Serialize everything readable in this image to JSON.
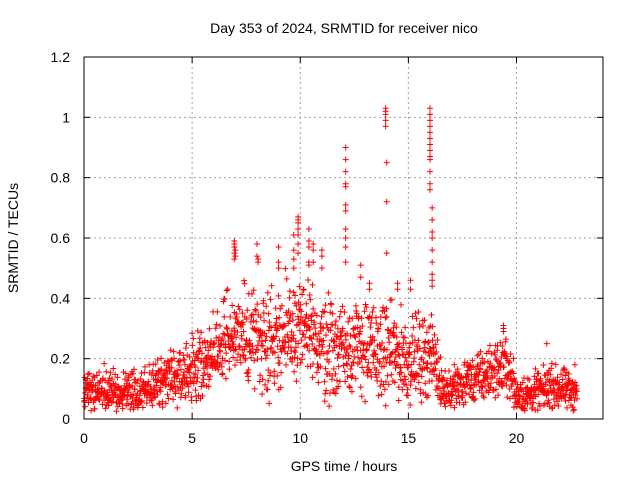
{
  "chart_data": {
    "type": "scatter",
    "title": "Day 353 of 2024, SRMTID for receiver nico",
    "xlabel": "GPS time / hours",
    "ylabel": "SRMTID / TECUs",
    "xlim": [
      0,
      24
    ],
    "ylim": [
      0,
      1.2
    ],
    "xticks": [
      0,
      5,
      10,
      15,
      20
    ],
    "xtick_labels": [
      "0",
      "5",
      "10",
      "15",
      "20"
    ],
    "yticks": [
      0,
      0.2,
      0.4,
      0.6,
      0.8,
      1,
      1.2
    ],
    "ytick_labels": [
      "0",
      "0.2",
      "0.4",
      "0.6",
      "0.8",
      "1",
      "1.2"
    ],
    "grid": true,
    "marker": "+",
    "color": "#ff0000",
    "trend": [
      [
        0.0,
        0.09
      ],
      [
        0.5,
        0.09
      ],
      [
        1.0,
        0.1
      ],
      [
        1.5,
        0.09
      ],
      [
        2.0,
        0.09
      ],
      [
        2.5,
        0.09
      ],
      [
        3.0,
        0.1
      ],
      [
        3.5,
        0.12
      ],
      [
        4.0,
        0.14
      ],
      [
        4.5,
        0.16
      ],
      [
        5.0,
        0.16
      ],
      [
        5.5,
        0.19
      ],
      [
        6.0,
        0.22
      ],
      [
        6.5,
        0.25
      ],
      [
        7.0,
        0.27
      ],
      [
        7.5,
        0.27
      ],
      [
        8.0,
        0.27
      ],
      [
        8.5,
        0.26
      ],
      [
        9.0,
        0.27
      ],
      [
        9.5,
        0.28
      ],
      [
        10.0,
        0.3
      ],
      [
        10.5,
        0.27
      ],
      [
        11.0,
        0.25
      ],
      [
        11.5,
        0.24
      ],
      [
        12.0,
        0.24
      ],
      [
        12.5,
        0.25
      ],
      [
        13.0,
        0.24
      ],
      [
        13.5,
        0.22
      ],
      [
        14.0,
        0.22
      ],
      [
        14.5,
        0.21
      ],
      [
        15.0,
        0.2
      ],
      [
        15.5,
        0.2
      ],
      [
        16.0,
        0.22
      ],
      [
        16.3,
        0.18
      ],
      [
        16.6,
        0.1
      ],
      [
        17.0,
        0.1
      ],
      [
        17.5,
        0.12
      ],
      [
        18.0,
        0.13
      ],
      [
        18.5,
        0.14
      ],
      [
        19.0,
        0.16
      ],
      [
        19.5,
        0.18
      ],
      [
        19.8,
        0.14
      ],
      [
        20.0,
        0.08
      ],
      [
        20.5,
        0.08
      ],
      [
        21.0,
        0.09
      ],
      [
        21.5,
        0.11
      ],
      [
        22.0,
        0.1
      ],
      [
        22.5,
        0.09
      ],
      [
        22.8,
        0.09
      ]
    ],
    "spread": [
      [
        0.0,
        0.05
      ],
      [
        3.0,
        0.05
      ],
      [
        5.0,
        0.08
      ],
      [
        7.0,
        0.12
      ],
      [
        10.0,
        0.14
      ],
      [
        13.0,
        0.12
      ],
      [
        16.0,
        0.1
      ],
      [
        16.6,
        0.05
      ],
      [
        19.5,
        0.07
      ],
      [
        20.0,
        0.05
      ],
      [
        22.8,
        0.05
      ]
    ],
    "x_end": 22.8,
    "point_step": 0.0125,
    "spikes": [
      {
        "x": 6.95,
        "values": [
          0.59,
          0.58,
          0.57,
          0.55,
          0.53
        ]
      },
      {
        "x": 7.0,
        "values": [
          0.56,
          0.54
        ]
      },
      {
        "x": 8.0,
        "values": [
          0.58,
          0.54
        ]
      },
      {
        "x": 8.05,
        "values": [
          0.53,
          0.52
        ]
      },
      {
        "x": 9.0,
        "values": [
          0.57,
          0.52,
          0.5
        ]
      },
      {
        "x": 9.7,
        "values": [
          0.61,
          0.56,
          0.53,
          0.5
        ]
      },
      {
        "x": 9.9,
        "values": [
          0.67,
          0.66,
          0.65,
          0.63,
          0.61,
          0.58,
          0.55
        ]
      },
      {
        "x": 10.4,
        "values": [
          0.63,
          0.59,
          0.57,
          0.52,
          0.51
        ]
      },
      {
        "x": 10.6,
        "values": [
          0.58,
          0.56,
          0.52
        ]
      },
      {
        "x": 11.0,
        "values": [
          0.56,
          0.54,
          0.5
        ]
      },
      {
        "x": 12.1,
        "values": [
          0.9,
          0.86,
          0.82,
          0.78,
          0.77,
          0.71,
          0.69,
          0.63,
          0.6,
          0.57,
          0.52
        ]
      },
      {
        "x": 12.8,
        "values": [
          0.51,
          0.47
        ]
      },
      {
        "x": 13.2,
        "values": [
          0.45,
          0.43
        ]
      },
      {
        "x": 13.95,
        "values": [
          1.03,
          1.02,
          1.01,
          0.99,
          0.97
        ]
      },
      {
        "x": 14.0,
        "values": [
          0.85,
          0.72,
          0.55
        ]
      },
      {
        "x": 14.5,
        "values": [
          0.45,
          0.43
        ]
      },
      {
        "x": 15.1,
        "values": [
          0.46,
          0.43
        ]
      },
      {
        "x": 16.0,
        "values": [
          1.03,
          1.01,
          0.99,
          0.97,
          0.95,
          0.93,
          0.91,
          0.89,
          0.87,
          0.86,
          0.82,
          0.78,
          0.76
        ]
      },
      {
        "x": 16.1,
        "values": [
          0.7,
          0.66,
          0.62,
          0.6,
          0.56,
          0.52,
          0.48,
          0.46,
          0.44
        ]
      },
      {
        "x": 19.4,
        "values": [
          0.31,
          0.3,
          0.29
        ]
      },
      {
        "x": 21.4,
        "values": [
          0.25
        ]
      },
      {
        "x": 22.7,
        "values": [
          0.18
        ]
      }
    ]
  }
}
